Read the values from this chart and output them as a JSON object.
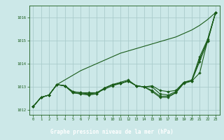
{
  "title": "Graphe pression niveau de la mer (hPa)",
  "bg_color": "#cce8e8",
  "grid_color": "#aacccc",
  "line_color": "#1a5c1a",
  "marker_color": "#1a5c1a",
  "title_bg": "#2a6e2a",
  "title_fg": "#ffffff",
  "xlim": [
    -0.5,
    23.5
  ],
  "ylim": [
    1011.8,
    1016.5
  ],
  "yticks": [
    1012,
    1013,
    1014,
    1015,
    1016
  ],
  "xticks": [
    0,
    1,
    2,
    3,
    4,
    5,
    6,
    7,
    8,
    9,
    10,
    11,
    12,
    13,
    14,
    15,
    16,
    17,
    18,
    19,
    20,
    21,
    22,
    23
  ],
  "series_no_marker": [
    [
      1012.15,
      1012.55,
      1012.65,
      1013.1,
      1013.3,
      1013.5,
      1013.7,
      1013.85,
      1014.0,
      1014.15,
      1014.3,
      1014.45,
      1014.55,
      1014.65,
      1014.75,
      1014.85,
      1014.95,
      1015.05,
      1015.15,
      1015.3,
      1015.45,
      1015.65,
      1015.9,
      1016.2
    ]
  ],
  "series_with_marker": [
    [
      1012.15,
      1012.55,
      1012.65,
      1013.1,
      1013.05,
      1012.8,
      1012.75,
      1012.75,
      1012.75,
      1012.9,
      1013.05,
      1013.15,
      1013.25,
      1013.05,
      1013.0,
      1013.05,
      1012.85,
      1012.8,
      1012.85,
      1013.2,
      1013.25,
      1013.6,
      1015.0,
      1016.2
    ],
    [
      1012.15,
      1012.55,
      1012.65,
      1013.1,
      1013.05,
      1012.75,
      1012.7,
      1012.7,
      1012.7,
      1012.95,
      1013.1,
      1013.15,
      1013.25,
      1013.05,
      1013.0,
      1012.85,
      1012.6,
      1012.6,
      1012.75,
      1013.2,
      1013.3,
      1014.3,
      1015.05,
      1016.2
    ],
    [
      1012.15,
      1012.55,
      1012.65,
      1013.1,
      1013.05,
      1012.75,
      1012.7,
      1012.65,
      1012.7,
      1012.95,
      1013.1,
      1013.15,
      1013.25,
      1013.05,
      1013.0,
      1012.8,
      1012.55,
      1012.55,
      1012.75,
      1013.15,
      1013.25,
      1014.2,
      1015.0,
      1016.2
    ],
    [
      1012.15,
      1012.55,
      1012.65,
      1013.1,
      1013.05,
      1012.8,
      1012.75,
      1012.7,
      1012.75,
      1012.95,
      1013.1,
      1013.2,
      1013.3,
      1013.05,
      1013.0,
      1013.0,
      1012.7,
      1012.65,
      1012.8,
      1013.2,
      1013.25,
      1014.1,
      1014.95,
      1016.2
    ]
  ]
}
